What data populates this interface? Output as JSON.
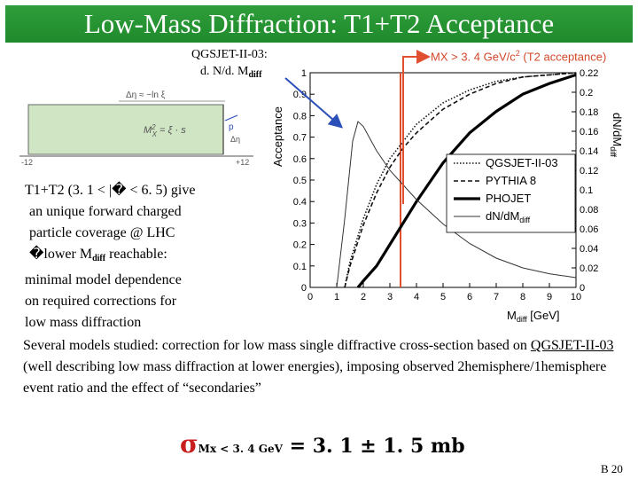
{
  "slide": {
    "title": "Low-Mass Diffraction: T1+T2 Acceptance",
    "model_label": "QGSJET-II-03:",
    "dndm_main": "d. N/d. M",
    "dndm_sub": "diff",
    "mx_label_main": "MX > 3. 4 GeV/c",
    "mx_label_sup": "2",
    "mx_label_tail": " (T2 acceptance)",
    "left_lines": [
      "T1+T2 (3. 1 < |� < 6. 5) give",
      "an unique forward charged",
      "particle coverage @ LHC",
      "�lower M",
      " reachable:",
      "minimal model dependence",
      "on required corrections for",
      "low mass diffraction"
    ],
    "left_sub": "diff",
    "body_pre": "Several models studied: correction for low mass single diffractive cross-section based on ",
    "body_link": "QGSJET-II-03",
    "body_post": " (well describing low mass diffraction at lower energies), imposing observed 2hemisphere/1hemisphere event ratio and the effect of “secondaries”",
    "sigma_symbol": "σ",
    "sigma_sub": "Mx < 3. 4 GeV",
    "sigma_value": " = 3. 1 ± 1. 5 mb",
    "slide_number": "B 20",
    "colors": {
      "title_bar": "#1f8a2c",
      "title_text": "#ffffff",
      "mx_label": "#d2482b",
      "arrow_red": "#e05030",
      "arrow_blue": "#2a4fb8",
      "sigma": "#c81e1e",
      "inset_fill": "#cfe5c3"
    }
  },
  "inset": {
    "top_label_main": "Δη ≈ −ln ξ",
    "formula": "M",
    "formula_sup": "2",
    "formula_sub": "X",
    "formula_tail": " = ξ · s",
    "axis_min": "-12",
    "axis_max": "+12",
    "arrow_label": "p",
    "eta_label": "Δη"
  },
  "chart_data": {
    "type": "line",
    "xlabel_main": "M",
    "xlabel_sub": "diff",
    "xlabel_unit": " [GeV]",
    "ylabel_left": "Acceptance",
    "ylabel_right_main": "dN/dM",
    "ylabel_right_sub": "diff",
    "xlim": [
      0,
      10
    ],
    "ylim_left": [
      0,
      1
    ],
    "ylim_right": [
      0,
      0.22
    ],
    "x_ticks": [
      "0",
      "1",
      "2",
      "3",
      "4",
      "5",
      "6",
      "7",
      "8",
      "9",
      "10"
    ],
    "y_ticks_left": [
      "0",
      "0.1",
      "0.2",
      "0.3",
      "0.4",
      "0.5",
      "0.6",
      "0.7",
      "0.8",
      "0.9",
      "1"
    ],
    "y_ticks_right": [
      "0",
      "0.02",
      "0.04",
      "0.06",
      "0.08",
      "0.1",
      "0.12",
      "0.14",
      "0.16",
      "0.18",
      "0.2",
      "0.22"
    ],
    "vertical_marker_x": 3.4,
    "legend_placement": "bottom-right",
    "series": [
      {
        "name": "QGSJET-II-03",
        "style": "dotted",
        "axis": "left",
        "x": [
          1.3,
          1.5,
          2,
          2.5,
          3,
          3.5,
          4,
          5,
          6,
          7,
          8,
          9,
          10
        ],
        "y": [
          0.0,
          0.12,
          0.32,
          0.48,
          0.6,
          0.68,
          0.76,
          0.86,
          0.92,
          0.96,
          0.98,
          0.99,
          1.0
        ]
      },
      {
        "name": "PYTHIA 8",
        "style": "dashed",
        "axis": "left",
        "x": [
          1.3,
          1.5,
          2,
          2.5,
          3,
          3.5,
          4,
          5,
          6,
          7,
          8,
          9,
          10
        ],
        "y": [
          0.0,
          0.1,
          0.29,
          0.44,
          0.56,
          0.65,
          0.72,
          0.83,
          0.9,
          0.95,
          0.98,
          0.99,
          1.0
        ]
      },
      {
        "name": "PHOJET",
        "style": "thick",
        "axis": "left",
        "x": [
          1.8,
          2,
          2.5,
          3,
          3.5,
          4,
          4.5,
          5,
          6,
          7,
          8,
          9,
          10
        ],
        "y": [
          0.0,
          0.03,
          0.1,
          0.2,
          0.3,
          0.4,
          0.49,
          0.58,
          0.72,
          0.82,
          0.9,
          0.95,
          0.99
        ]
      },
      {
        "name": "dN/dM",
        "name_sub": "diff",
        "style": "thin",
        "axis": "right",
        "x": [
          1.0,
          1.3,
          1.6,
          1.8,
          2.0,
          2.5,
          3,
          4,
          5,
          6,
          7,
          8,
          9,
          10
        ],
        "y": [
          0.0,
          0.07,
          0.15,
          0.17,
          0.165,
          0.14,
          0.12,
          0.09,
          0.065,
          0.045,
          0.03,
          0.02,
          0.014,
          0.01
        ]
      }
    ]
  }
}
